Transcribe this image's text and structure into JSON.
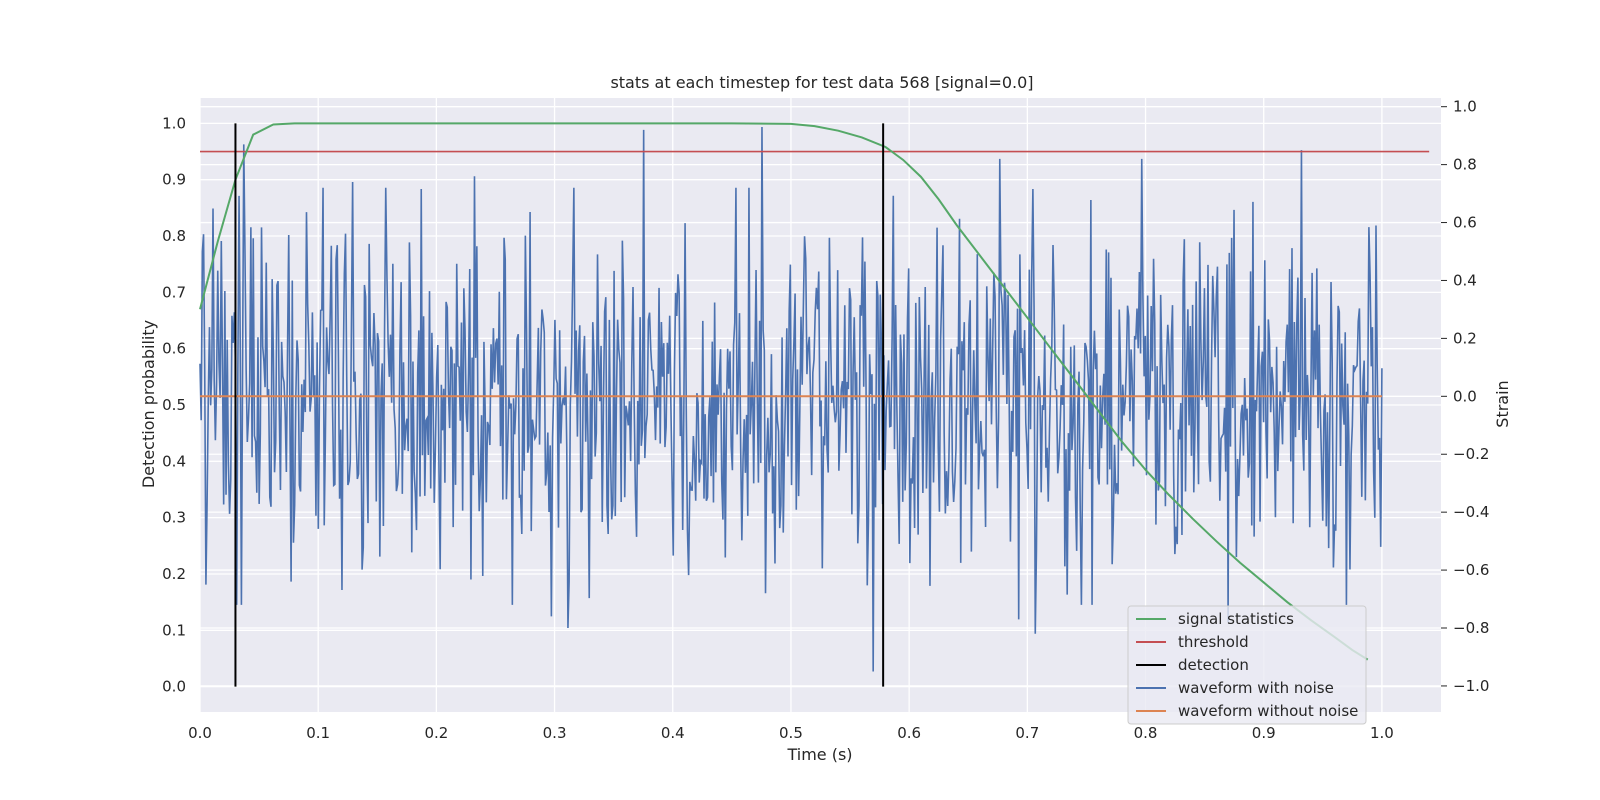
{
  "chart_data": {
    "type": "line",
    "title": "stats at each timestep for test data 568 [signal=0.0]",
    "xlabel": "Time (s)",
    "ylabel": "Detection probability",
    "y2label": "Strain",
    "xlim": [
      0.0,
      1.05
    ],
    "ylim": [
      -0.045,
      1.045
    ],
    "y2lim": [
      -1.09,
      1.03
    ],
    "x_ticks": [
      "0.0",
      "0.1",
      "0.2",
      "0.3",
      "0.4",
      "0.5",
      "0.6",
      "0.7",
      "0.8",
      "0.9",
      "1.0"
    ],
    "y_ticks": [
      "0.0",
      "0.1",
      "0.2",
      "0.3",
      "0.4",
      "0.5",
      "0.6",
      "0.7",
      "0.8",
      "0.9",
      "1.0"
    ],
    "y2_ticks": [
      "−1.0",
      "−0.8",
      "−0.6",
      "−0.4",
      "−0.2",
      "0.0",
      "0.2",
      "0.4",
      "0.6",
      "0.8",
      "1.0"
    ],
    "grid": true,
    "legend_position": "lower-right",
    "colors": {
      "background": "#eaeaf2",
      "grid": "#ffffff",
      "signal": "#55a868",
      "threshold": "#c44e52",
      "detection": "#000000",
      "waveform_noise": "#4c72b0",
      "waveform_clean": "#dd8452"
    },
    "signal_statistics": {
      "name": "signal statistics",
      "x": [
        0.0,
        0.015,
        0.03,
        0.045,
        0.062,
        0.08,
        0.1,
        0.2,
        0.3,
        0.4,
        0.45,
        0.5,
        0.52,
        0.54,
        0.56,
        0.58,
        0.595,
        0.61,
        0.625,
        0.64,
        0.66,
        0.68,
        0.7,
        0.72,
        0.74,
        0.76,
        0.78,
        0.8,
        0.82,
        0.84,
        0.86,
        0.88,
        0.9,
        0.92,
        0.94,
        0.96,
        0.975,
        0.988
      ],
      "y": [
        0.67,
        0.79,
        0.9,
        0.98,
        0.998,
        1.0,
        1.0,
        1.0,
        1.0,
        1.0,
        1.0,
        0.999,
        0.995,
        0.987,
        0.975,
        0.958,
        0.935,
        0.905,
        0.865,
        0.82,
        0.765,
        0.71,
        0.655,
        0.6,
        0.545,
        0.49,
        0.435,
        0.385,
        0.34,
        0.298,
        0.258,
        0.22,
        0.185,
        0.15,
        0.118,
        0.088,
        0.065,
        0.048
      ]
    },
    "threshold": {
      "name": "threshold",
      "value": 0.95
    },
    "detection": {
      "name": "detection",
      "x": [
        0.03,
        0.578
      ],
      "y_range": [
        0.0,
        1.0
      ]
    },
    "waveform_with_noise": {
      "name": "waveform with noise",
      "x_range": [
        0.0,
        1.0
      ],
      "samples": 1000,
      "rms": 0.3,
      "peaks": [
        {
          "x": 0.002,
          "y": 0.5
        },
        {
          "x": 0.005,
          "y": -0.65
        },
        {
          "x": 0.031,
          "y": -0.72
        },
        {
          "x": 0.037,
          "y": 0.87
        },
        {
          "x": 0.077,
          "y": -0.64
        },
        {
          "x": 0.129,
          "y": 0.74
        },
        {
          "x": 0.232,
          "y": 0.76
        },
        {
          "x": 0.297,
          "y": -0.76
        },
        {
          "x": 0.311,
          "y": -0.8
        },
        {
          "x": 0.375,
          "y": 0.92
        },
        {
          "x": 0.4,
          "y": -0.55
        },
        {
          "x": 0.475,
          "y": 0.93
        },
        {
          "x": 0.478,
          "y": -0.68
        },
        {
          "x": 0.57,
          "y": -0.95
        },
        {
          "x": 0.677,
          "y": 0.82
        },
        {
          "x": 0.693,
          "y": -0.77
        },
        {
          "x": 0.707,
          "y": -0.82
        },
        {
          "x": 0.797,
          "y": 0.82
        },
        {
          "x": 0.87,
          "y": -0.78
        },
        {
          "x": 0.932,
          "y": 0.85
        },
        {
          "x": 0.97,
          "y": -0.72
        },
        {
          "x": 0.99,
          "y": 0.42
        },
        {
          "x": 0.999,
          "y": -0.52
        }
      ]
    },
    "waveform_without_noise": {
      "name": "waveform without noise",
      "y": 0.0
    },
    "legend": [
      "signal statistics",
      "threshold",
      "detection",
      "waveform with noise",
      "waveform without noise"
    ]
  }
}
